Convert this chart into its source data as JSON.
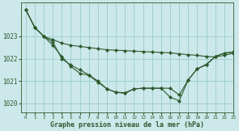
{
  "title": "Graphe pression niveau de la mer (hPa)",
  "bg_color": "#cce8ea",
  "grid_color": "#99cccc",
  "line_color": "#2d5a2d",
  "marker_color": "#2d5a2d",
  "xlim": [
    -0.5,
    23
  ],
  "ylim": [
    1019.6,
    1024.5
  ],
  "yticks": [
    1020,
    1021,
    1022,
    1023
  ],
  "xticks": [
    0,
    1,
    2,
    3,
    4,
    5,
    6,
    7,
    8,
    9,
    10,
    11,
    12,
    13,
    14,
    15,
    16,
    17,
    18,
    19,
    20,
    21,
    22,
    23
  ],
  "series1_x": [
    0,
    1,
    2,
    3,
    4,
    5,
    6,
    7,
    8,
    9,
    10,
    11,
    12,
    13,
    14,
    15,
    16,
    17,
    18,
    19,
    20,
    21,
    22,
    23
  ],
  "series1_y": [
    1024.2,
    1023.4,
    1023.0,
    1022.85,
    1022.7,
    1022.6,
    1022.55,
    1022.5,
    1022.45,
    1022.4,
    1022.38,
    1022.36,
    1022.34,
    1022.32,
    1022.3,
    1022.28,
    1022.26,
    1022.22,
    1022.18,
    1022.15,
    1022.1,
    1022.08,
    1022.15,
    1022.25
  ],
  "series2_x": [
    0,
    1,
    2,
    3,
    4,
    5,
    6,
    7,
    8,
    9,
    10,
    11,
    12,
    13,
    14,
    15,
    16,
    17,
    18,
    19,
    20,
    21,
    22,
    23
  ],
  "series2_y": [
    1024.2,
    1023.4,
    1023.0,
    1022.6,
    1022.1,
    1021.65,
    1021.35,
    1021.25,
    1020.95,
    1020.65,
    1020.5,
    1020.45,
    1020.65,
    1020.68,
    1020.68,
    1020.68,
    1020.68,
    1020.38,
    1021.05,
    1021.55,
    1021.75,
    1022.1,
    1022.25,
    1022.3
  ],
  "series3_x": [
    0,
    1,
    2,
    3,
    4,
    5,
    6,
    7,
    8,
    9,
    10,
    11,
    12,
    13,
    14,
    15,
    16,
    17,
    18,
    19,
    20,
    21,
    22,
    23
  ],
  "series3_y": [
    1024.2,
    1023.4,
    1023.0,
    1022.75,
    1022.0,
    1021.72,
    1021.5,
    1021.28,
    1021.0,
    1020.65,
    1020.5,
    1020.48,
    1020.65,
    1020.68,
    1020.68,
    1020.68,
    1020.28,
    1020.12,
    1021.05,
    1021.55,
    1021.72,
    1022.1,
    1022.25,
    1022.3
  ]
}
